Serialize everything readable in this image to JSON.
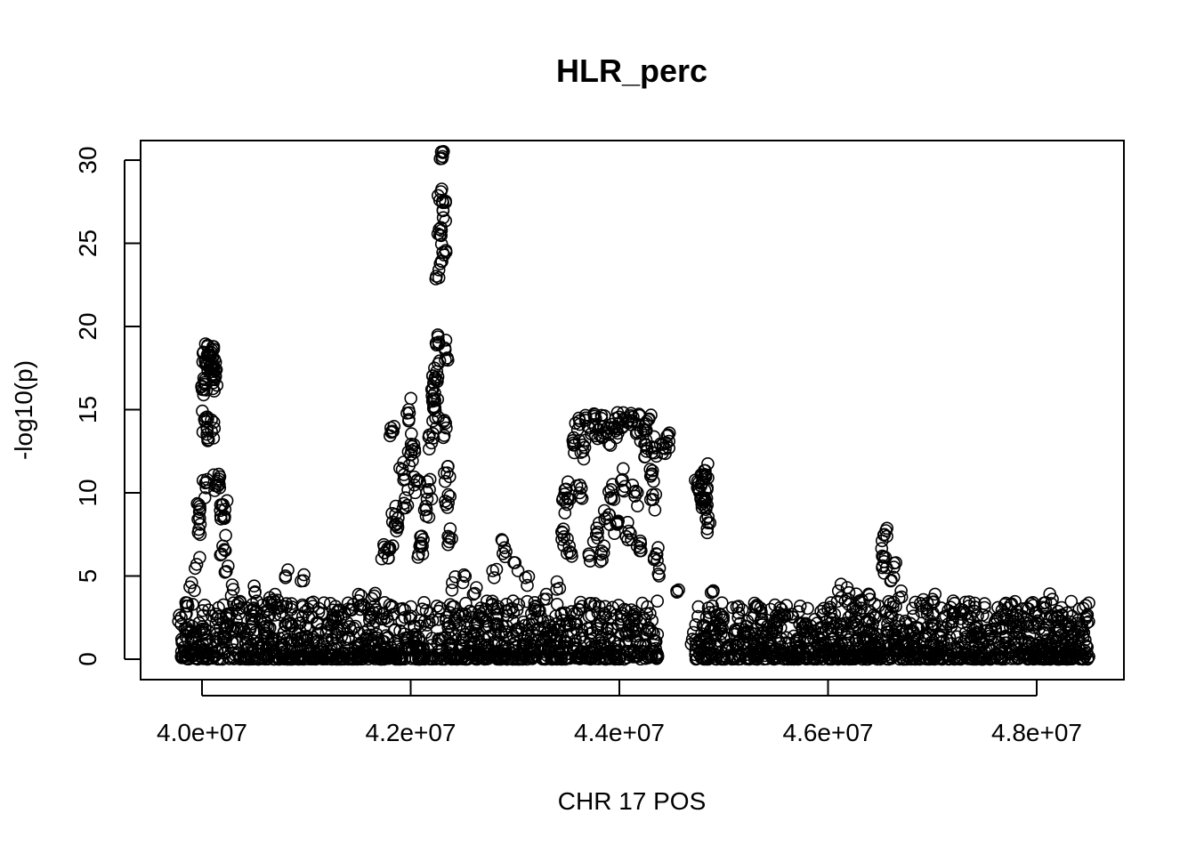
{
  "chart_data": {
    "type": "scatter",
    "title": "HLR_perc",
    "xlabel": "CHR 17 POS",
    "ylabel": "-log10(p)",
    "xlim": [
      39700000,
      48500000
    ],
    "ylim": [
      -0.5,
      31.2
    ],
    "x_ticks": [
      40000000,
      42000000,
      44000000,
      46000000,
      48000000
    ],
    "x_tick_labels": [
      "4.0e+07",
      "4.2e+07",
      "4.4e+07",
      "4.6e+07",
      "4.8e+07"
    ],
    "y_ticks": [
      0,
      5,
      10,
      15,
      20,
      25,
      30
    ],
    "y_tick_labels": [
      "0",
      "5",
      "10",
      "15",
      "20",
      "25",
      "30"
    ],
    "grid": false,
    "marker": "open-circle",
    "series": [
      {
        "points": [
          [
            39800000,
            2.5
          ],
          [
            39850000,
            3.2
          ],
          [
            39900000,
            4.6
          ],
          [
            39950000,
            5.7
          ],
          [
            39970000,
            7.8
          ],
          [
            39980000,
            9.0
          ],
          [
            40000000,
            16.4
          ],
          [
            40010000,
            18.4
          ],
          [
            40020000,
            16.2
          ],
          [
            40030000,
            14.3
          ],
          [
            40040000,
            10.3
          ],
          [
            40050000,
            13.8
          ],
          [
            40060000,
            18.3
          ],
          [
            40070000,
            17.9
          ],
          [
            40080000,
            18.2
          ],
          [
            40090000,
            13.7
          ],
          [
            40100000,
            18.1
          ],
          [
            40110000,
            17.5
          ],
          [
            40120000,
            16.8
          ],
          [
            40130000,
            17.0
          ],
          [
            40140000,
            10.6
          ],
          [
            40150000,
            10.4
          ],
          [
            40180000,
            8.6
          ],
          [
            40200000,
            6.8
          ],
          [
            40220000,
            9.0
          ],
          [
            40250000,
            5.6
          ],
          [
            40300000,
            4.2
          ],
          [
            40350000,
            3.0
          ],
          [
            40500000,
            4.4
          ],
          [
            40650000,
            3.7
          ],
          [
            40700000,
            3.9
          ],
          [
            40800000,
            4.9
          ],
          [
            40950000,
            4.7
          ],
          [
            41100000,
            2.2
          ],
          [
            41300000,
            2.6
          ],
          [
            41500000,
            3.9
          ],
          [
            41650000,
            3.8
          ],
          [
            41750000,
            6.4
          ],
          [
            41800000,
            6.6
          ],
          [
            41820000,
            13.7
          ],
          [
            41850000,
            8.1
          ],
          [
            41880000,
            8.5
          ],
          [
            41920000,
            11.4
          ],
          [
            41950000,
            9.7
          ],
          [
            41980000,
            15.0
          ],
          [
            42000000,
            12.3
          ],
          [
            42030000,
            12.9
          ],
          [
            42060000,
            10.7
          ],
          [
            42090000,
            6.8
          ],
          [
            42120000,
            7.2
          ],
          [
            42150000,
            9.0
          ],
          [
            42180000,
            10.2
          ],
          [
            42200000,
            13.0
          ],
          [
            42210000,
            15.5
          ],
          [
            42220000,
            16.6
          ],
          [
            42230000,
            16.0
          ],
          [
            42240000,
            14.5
          ],
          [
            42250000,
            17.3
          ],
          [
            42260000,
            19.5
          ],
          [
            42270000,
            23.4
          ],
          [
            42280000,
            25.5
          ],
          [
            42290000,
            28.1
          ],
          [
            42300000,
            30.1
          ],
          [
            42310000,
            27.0
          ],
          [
            42320000,
            24.3
          ],
          [
            42330000,
            18.6
          ],
          [
            42340000,
            13.9
          ],
          [
            42350000,
            11.2
          ],
          [
            42360000,
            9.4
          ],
          [
            42370000,
            7.3
          ],
          [
            42400000,
            4.6
          ],
          [
            42500000,
            4.6
          ],
          [
            42600000,
            3.9
          ],
          [
            42800000,
            4.9
          ],
          [
            42900000,
            6.7
          ],
          [
            43000000,
            5.8
          ],
          [
            43100000,
            4.9
          ],
          [
            43300000,
            3.9
          ],
          [
            43400000,
            4.2
          ],
          [
            43450000,
            7.2
          ],
          [
            43480000,
            10.2
          ],
          [
            43500000,
            9.3
          ],
          [
            43520000,
            6.8
          ],
          [
            43560000,
            13.0
          ],
          [
            43600000,
            13.8
          ],
          [
            43620000,
            10.0
          ],
          [
            43650000,
            12.5
          ],
          [
            43700000,
            14.0
          ],
          [
            43720000,
            5.9
          ],
          [
            43750000,
            14.1
          ],
          [
            43780000,
            7.5
          ],
          [
            43800000,
            13.8
          ],
          [
            43830000,
            6.5
          ],
          [
            43850000,
            14.0
          ],
          [
            43880000,
            8.5
          ],
          [
            43900000,
            13.5
          ],
          [
            43920000,
            10.2
          ],
          [
            43950000,
            13.9
          ],
          [
            43980000,
            8.1
          ],
          [
            44000000,
            14.2
          ],
          [
            44030000,
            10.8
          ],
          [
            44060000,
            14.5
          ],
          [
            44090000,
            7.7
          ],
          [
            44120000,
            14.3
          ],
          [
            44150000,
            9.8
          ],
          [
            44180000,
            14.1
          ],
          [
            44200000,
            7.1
          ],
          [
            44230000,
            13.8
          ],
          [
            44260000,
            12.5
          ],
          [
            44280000,
            14.4
          ],
          [
            44300000,
            11.0
          ],
          [
            44320000,
            9.6
          ],
          [
            44340000,
            12.7
          ],
          [
            44360000,
            6.3
          ],
          [
            44380000,
            5.0
          ],
          [
            44420000,
            12.7
          ],
          [
            44450000,
            13.0
          ],
          [
            44550000,
            4.1
          ],
          [
            44700000,
            1.2
          ],
          [
            44750000,
            10.7
          ],
          [
            44780000,
            9.7
          ],
          [
            44800000,
            10.8
          ],
          [
            44820000,
            11.1
          ],
          [
            44830000,
            9.0
          ],
          [
            44840000,
            10.2
          ],
          [
            44850000,
            8.2
          ],
          [
            44880000,
            4.0
          ],
          [
            44900000,
            1.8
          ],
          [
            45200000,
            1.6
          ],
          [
            45500000,
            1.9
          ],
          [
            45800000,
            1.7
          ],
          [
            46000000,
            3.0
          ],
          [
            46100000,
            4.1
          ],
          [
            46200000,
            4.0
          ],
          [
            46300000,
            3.5
          ],
          [
            46400000,
            3.6
          ],
          [
            46520000,
            6.2
          ],
          [
            46540000,
            7.5
          ],
          [
            46560000,
            5.5
          ],
          [
            46600000,
            4.7
          ],
          [
            46650000,
            5.8
          ],
          [
            46700000,
            4.1
          ],
          [
            46900000,
            3.2
          ],
          [
            47000000,
            3.6
          ],
          [
            47200000,
            3.5
          ],
          [
            47400000,
            2.9
          ],
          [
            47600000,
            2.1
          ],
          [
            47800000,
            2.5
          ],
          [
            48000000,
            2.2
          ],
          [
            48150000,
            3.6
          ],
          [
            48300000,
            1.8
          ],
          [
            48450000,
            1.6
          ]
        ],
        "baseline_band": {
          "x_range": [
            39800000,
            48500000
          ],
          "y_range": [
            0,
            3.5
          ]
        }
      }
    ]
  }
}
